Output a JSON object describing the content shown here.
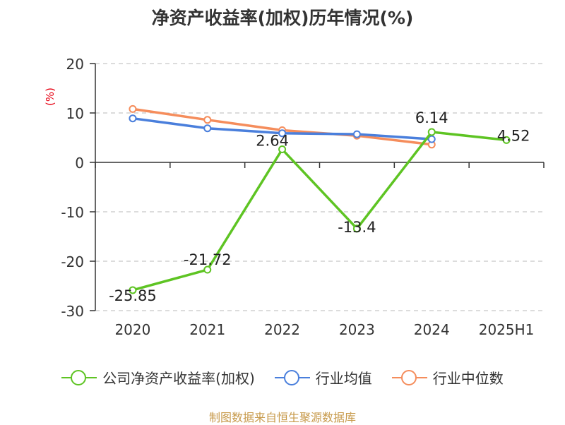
{
  "title": "净资产收益率(加权)历年情况(%)",
  "unit_label": "(%)",
  "source": "制图数据来自恒生聚源数据库",
  "chart_data": {
    "type": "line",
    "categories": [
      "2020",
      "2021",
      "2022",
      "2023",
      "2024",
      "2025H1"
    ],
    "ylim": [
      -30,
      20
    ],
    "yticks": [
      20,
      10,
      0,
      -10,
      -20,
      -30
    ],
    "grid": true,
    "legend_position": "bottom",
    "series": [
      {
        "name": "公司净资产收益率(加权)",
        "color": "#5ec423",
        "values": [
          -25.85,
          -21.72,
          2.64,
          -13.4,
          6.14,
          4.52
        ],
        "labels": [
          "-25.85",
          "-21.72",
          "2.64",
          "-13.4",
          "6.14",
          "4.52"
        ]
      },
      {
        "name": "行业均值",
        "color": "#4a7fdc",
        "values": [
          8.9,
          6.9,
          5.9,
          5.7,
          4.7,
          null
        ]
      },
      {
        "name": "行业中位数",
        "color": "#f58d5c",
        "values": [
          10.8,
          8.6,
          6.5,
          5.4,
          3.6,
          null
        ]
      }
    ]
  }
}
